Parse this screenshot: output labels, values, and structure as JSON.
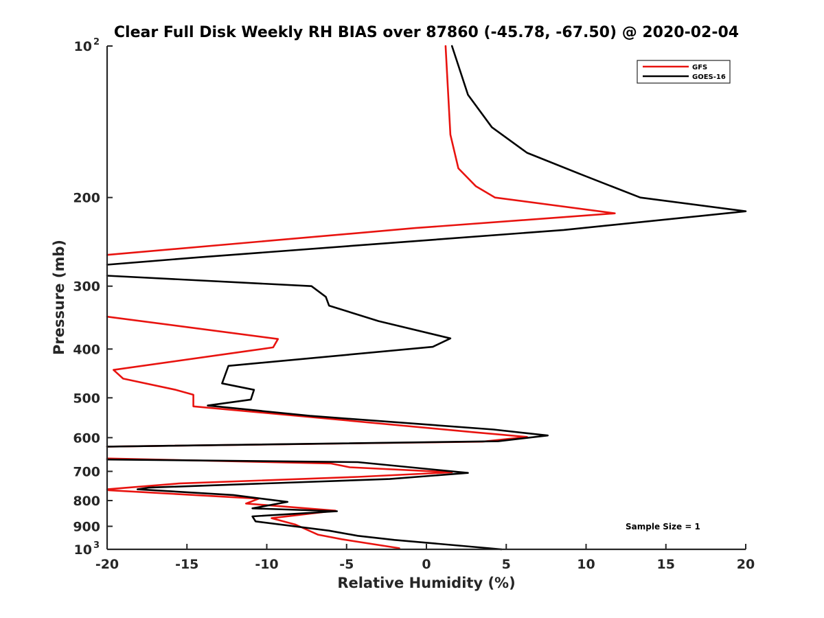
{
  "chart_data": {
    "type": "line",
    "title": "Clear Full Disk Weekly RH BIAS over 87860 (-45.78, -67.50) @ 2020-02-04",
    "xlabel": "Relative Humidity (%)",
    "ylabel": "Pressure (mb)",
    "xlim": [
      -20,
      20
    ],
    "ylim": [
      100,
      1000
    ],
    "y_scale": "log",
    "y_reversed": true,
    "grid": false,
    "legend_position": "top-right",
    "x_ticks": [
      "-20",
      "-15",
      "-10",
      "-5",
      "0",
      "5",
      "10",
      "15",
      "20"
    ],
    "y_ticks": [
      {
        "value": 100,
        "base": "10",
        "exp": "2"
      },
      {
        "value": 200,
        "label": "200"
      },
      {
        "value": 300,
        "label": "300"
      },
      {
        "value": 400,
        "label": "400"
      },
      {
        "value": 500,
        "label": "500"
      },
      {
        "value": 600,
        "label": "600"
      },
      {
        "value": 700,
        "label": "700"
      },
      {
        "value": 800,
        "label": "800"
      },
      {
        "value": 900,
        "label": "900"
      },
      {
        "value": 1000,
        "base": "10",
        "exp": "3"
      }
    ],
    "series": [
      {
        "name": "GFS",
        "color": "#e8130f",
        "points": [
          [
            1.2,
            100
          ],
          [
            1.5,
            150
          ],
          [
            2.0,
            175
          ],
          [
            3.1,
            190
          ],
          [
            4.3,
            200
          ],
          [
            11.8,
            215
          ],
          [
            -0.7,
            230
          ],
          [
            -20,
            260
          ],
          [
            null,
            null
          ],
          [
            -20,
            345
          ],
          [
            -15.5,
            360
          ],
          [
            -9.3,
            382
          ],
          [
            -9.6,
            397
          ],
          [
            -19.6,
            440
          ],
          [
            -19.0,
            458
          ],
          [
            -15.7,
            482
          ],
          [
            -14.6,
            493
          ],
          [
            -14.6,
            520
          ],
          [
            -7.5,
            545
          ],
          [
            2.9,
            585
          ],
          [
            6.3,
            598
          ],
          [
            3.5,
            611
          ],
          [
            -20,
            625
          ],
          [
            null,
            null
          ],
          [
            -20,
            660
          ],
          [
            -6.0,
            675
          ],
          [
            -4.8,
            687
          ],
          [
            1.6,
            703
          ],
          [
            -4.3,
            718
          ],
          [
            -15.5,
            740
          ],
          [
            -20,
            760
          ],
          [
            -19.9,
            763
          ],
          [
            -10.5,
            793
          ],
          [
            -11.3,
            811
          ],
          [
            -5.7,
            838
          ],
          [
            -9.7,
            867
          ],
          [
            -8.2,
            893
          ],
          [
            -6.8,
            935
          ],
          [
            -5.3,
            955
          ],
          [
            -1.7,
            995
          ]
        ]
      },
      {
        "name": "GOES-16",
        "color": "#000000",
        "points": [
          [
            1.6,
            100
          ],
          [
            2.6,
            125
          ],
          [
            4.1,
            145
          ],
          [
            6.3,
            163
          ],
          [
            9.7,
            180
          ],
          [
            13.4,
            200
          ],
          [
            20.0,
            213
          ],
          [
            8.6,
            232
          ],
          [
            -14.3,
            263
          ],
          [
            -20,
            272
          ],
          [
            null,
            null
          ],
          [
            -20,
            286
          ],
          [
            -7.2,
            300
          ],
          [
            -6.3,
            315
          ],
          [
            -6.1,
            328
          ],
          [
            -3.0,
            352
          ],
          [
            1.5,
            381
          ],
          [
            0.4,
            396
          ],
          [
            -12.4,
            432
          ],
          [
            -12.8,
            468
          ],
          [
            -10.8,
            482
          ],
          [
            -11.0,
            504
          ],
          [
            -13.7,
            518
          ],
          [
            -7.3,
            543
          ],
          [
            4.2,
            578
          ],
          [
            7.6,
            594
          ],
          [
            4.5,
            610
          ],
          [
            -20,
            625
          ],
          [
            null,
            null
          ],
          [
            -20,
            663
          ],
          [
            -4.3,
            671
          ],
          [
            2.6,
            705
          ],
          [
            -2.3,
            725
          ],
          [
            -17.4,
            754
          ],
          [
            -18.1,
            760
          ],
          [
            -12.1,
            780
          ],
          [
            -8.7,
            805
          ],
          [
            -10.9,
            829
          ],
          [
            -5.6,
            840
          ],
          [
            -10.9,
            860
          ],
          [
            -10.7,
            880
          ],
          [
            -6.1,
            918
          ],
          [
            -4.3,
            940
          ],
          [
            -2.0,
            958
          ],
          [
            4.7,
            1000
          ]
        ]
      }
    ],
    "annotation": "Sample Size = 1"
  }
}
